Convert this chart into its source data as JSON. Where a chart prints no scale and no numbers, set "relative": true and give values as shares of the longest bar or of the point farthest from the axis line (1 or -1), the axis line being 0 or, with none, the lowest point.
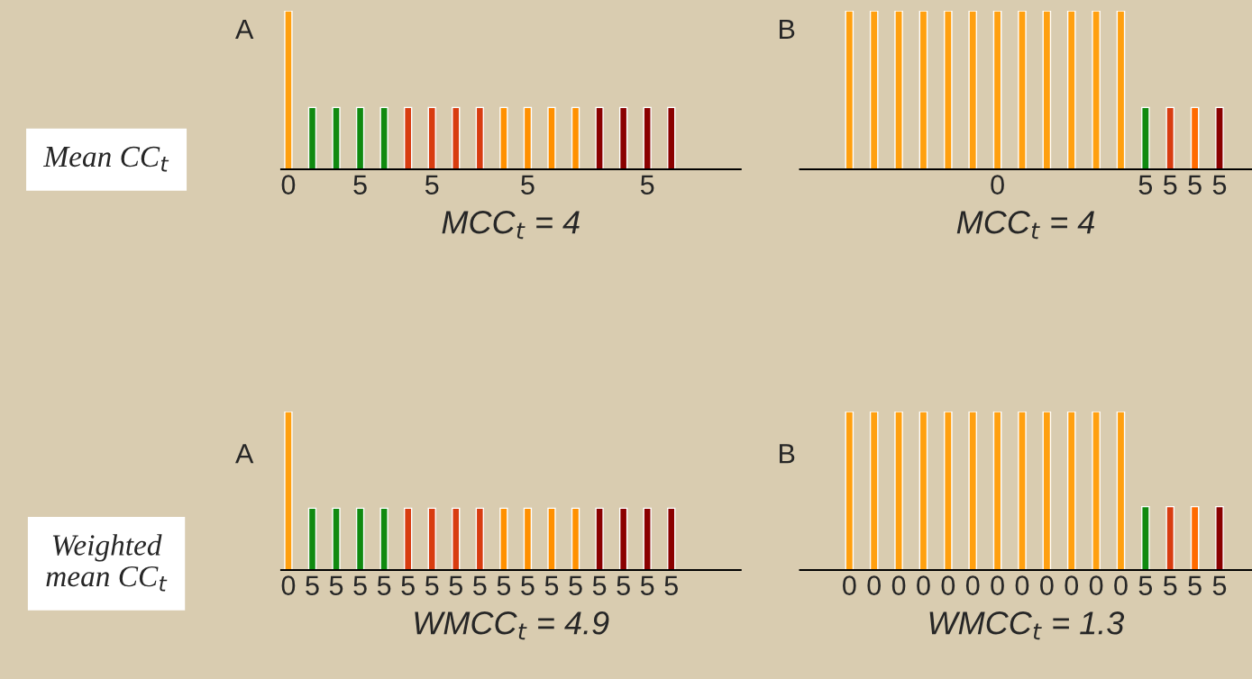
{
  "chart_data": [
    {
      "type": "bar",
      "title": "A",
      "xlabel": "MCC$_{t}$ = 4",
      "relative": true,
      "annotations": [
        "Mean CC$_{t}$"
      ],
      "categories": [
        "0",
        null,
        null,
        "5",
        null,
        null,
        "5",
        null,
        null,
        null,
        "5",
        null,
        null,
        null,
        null,
        "5",
        null
      ],
      "values": [
        1,
        0.39,
        0.39,
        0.39,
        0.39,
        0.39,
        0.39,
        0.39,
        0.39,
        0.39,
        0.39,
        0.39,
        0.39,
        0.39,
        0.39,
        0.39,
        0.39
      ],
      "colors": [
        "#ffa010",
        "#108a10",
        "#108a10",
        "#108a10",
        "#108a10",
        "#d83c10",
        "#d83c10",
        "#d83c10",
        "#d83c10",
        "#ff9000",
        "#ff9000",
        "#ff9000",
        "#ff9000",
        "#8a0000",
        "#8a0000",
        "#8a0000",
        "#8a0000"
      ]
    },
    {
      "type": "bar",
      "title": "B",
      "xlabel": "MCC$_{t}$ = 4",
      "relative": true,
      "categories": [
        null,
        null,
        null,
        null,
        null,
        null,
        "0",
        null,
        null,
        null,
        null,
        null,
        "5",
        "5",
        "5",
        "5"
      ],
      "values": [
        1,
        1,
        1,
        1,
        1,
        1,
        1,
        1,
        1,
        1,
        1,
        1,
        0.39,
        0.39,
        0.39,
        0.39
      ],
      "colors": [
        "#ffa010",
        "#ffa010",
        "#ffa010",
        "#ffa010",
        "#ffa010",
        "#ffa010",
        "#ffa010",
        "#ffa010",
        "#ffa010",
        "#ffa010",
        "#ffa010",
        "#ffa010",
        "#108a10",
        "#d83c10",
        "#ff6a00",
        "#8a0000"
      ]
    },
    {
      "type": "bar",
      "title": "A",
      "xlabel": "WMCC$_{t}$ = 4.9",
      "relative": true,
      "annotations": [
        "Weighted\nmean CC$_{t}$"
      ],
      "categories": [
        "0",
        "5",
        "5",
        "5",
        "5",
        "5",
        "5",
        "5",
        "5",
        "5",
        "5",
        "5",
        "5",
        "5",
        "5",
        "5",
        "5"
      ],
      "values": [
        1,
        0.39,
        0.39,
        0.39,
        0.39,
        0.39,
        0.39,
        0.39,
        0.39,
        0.39,
        0.39,
        0.39,
        0.39,
        0.39,
        0.39,
        0.39,
        0.39
      ],
      "colors": [
        "#ffa010",
        "#108a10",
        "#108a10",
        "#108a10",
        "#108a10",
        "#d83c10",
        "#d83c10",
        "#d83c10",
        "#d83c10",
        "#ff9000",
        "#ff9000",
        "#ff9000",
        "#ff9000",
        "#8a0000",
        "#8a0000",
        "#8a0000",
        "#8a0000"
      ]
    },
    {
      "type": "bar",
      "title": "B",
      "xlabel": "WMCC$_{t}$ = 1.3",
      "relative": true,
      "categories": [
        "0",
        "0",
        "0",
        "0",
        "0",
        "0",
        "0",
        "0",
        "0",
        "0",
        "0",
        "0",
        "5",
        "5",
        "5",
        "5"
      ],
      "values": [
        1,
        1,
        1,
        1,
        1,
        1,
        1,
        1,
        1,
        1,
        1,
        1,
        0.4,
        0.4,
        0.4,
        0.4
      ],
      "colors": [
        "#ffa010",
        "#ffa010",
        "#ffa010",
        "#ffa010",
        "#ffa010",
        "#ffa010",
        "#ffa010",
        "#ffa010",
        "#ffa010",
        "#ffa010",
        "#ffa010",
        "#ffa010",
        "#108a10",
        "#d83c10",
        "#ff6a00",
        "#8a0000"
      ]
    }
  ]
}
